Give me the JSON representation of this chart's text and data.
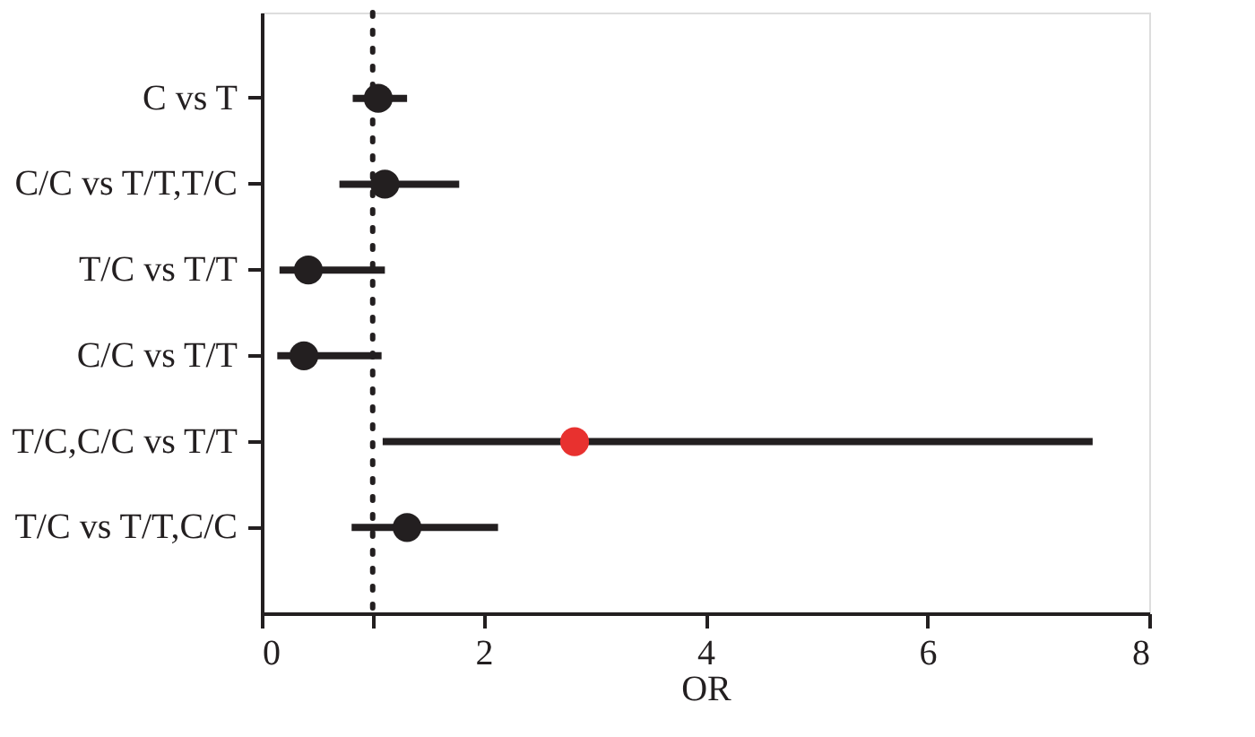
{
  "chart_data": {
    "type": "scatter",
    "orientation": "horizontal",
    "xlabel": "OR",
    "categories": [
      "C vs T",
      "C/C vs T/T,T/C",
      "T/C vs T/T",
      "C/C vs T/T",
      "T/C,C/C vs T/T",
      "T/C vs T/T,C/C"
    ],
    "values": [
      1.05,
      1.11,
      0.42,
      0.38,
      2.82,
      1.31
    ],
    "errors": [
      [
        0.82,
        1.31
      ],
      [
        0.7,
        1.78
      ],
      [
        0.16,
        1.11
      ],
      [
        0.14,
        1.08
      ],
      [
        1.09,
        7.49
      ],
      [
        0.81,
        2.13
      ]
    ],
    "colors": [
      "#231f20",
      "#231f20",
      "#231f20",
      "#231f20",
      "#e8312f",
      "#231f20"
    ],
    "xlim": [
      0,
      8
    ],
    "xticks": [
      0,
      {
        "value": 1,
        "label": null
      },
      2,
      4,
      6,
      8
    ],
    "ref_lines": [
      {
        "axis": "x",
        "value": 1,
        "line_style": "dotted",
        "color": "#231f20"
      }
    ],
    "marker": "circle",
    "grid": false
  }
}
